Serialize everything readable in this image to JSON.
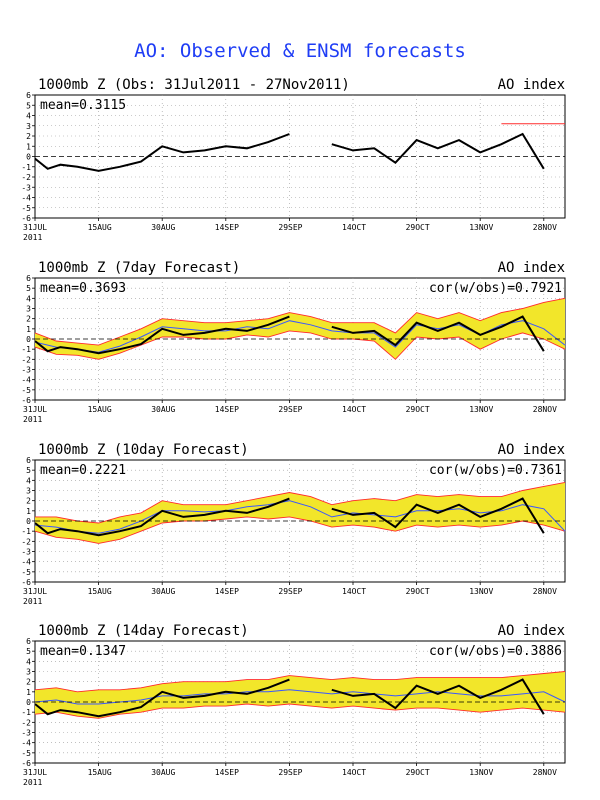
{
  "title": "AO: Observed & ENSM forecasts",
  "title_color": "#1f3df5",
  "colors": {
    "obs": "#000000",
    "ens_band": "#f2e62a",
    "ens_max_min": "#ff2b2b",
    "ens_mean": "#3a57ff",
    "axis": "#000000"
  },
  "x_ticks": [
    "31JUL",
    "15AUG",
    "30AUG",
    "14SEP",
    "29SEP",
    "14OCT",
    "29OCT",
    "13NOV",
    "28NOV"
  ],
  "year_label": "2011",
  "y_ticks": [
    "6",
    "5",
    "4",
    "3",
    "2",
    "1",
    "0",
    "-1",
    "-2",
    "-3",
    "-4",
    "-5",
    "-6"
  ],
  "chart_data": [
    {
      "type": "line",
      "panel_title": "1000mb Z (Obs: 31Jul2011 - 27Nov2011)",
      "index_label": "AO index",
      "mean_label": "mean=0.3115",
      "cor_label": "",
      "xlabel": "",
      "ylabel": "",
      "ylim": [
        -6,
        6
      ],
      "xlim_days": [
        0,
        125
      ],
      "grid": true,
      "observed": {
        "x_days": [
          0,
          3,
          6,
          10,
          15,
          20,
          25,
          30,
          35,
          40,
          45,
          50,
          55,
          60,
          65,
          70,
          75,
          80,
          85,
          90,
          95,
          100,
          105,
          110,
          115,
          120
        ],
        "values": [
          -0.2,
          -1.2,
          -0.8,
          -1.0,
          -1.4,
          -1.0,
          -0.5,
          1.0,
          0.4,
          0.6,
          1.0,
          0.8,
          1.4,
          2.2,
          null,
          1.2,
          0.6,
          0.8,
          -0.6,
          1.6,
          0.8,
          1.6,
          0.4,
          1.2,
          2.2,
          -1.2
        ]
      },
      "red_line": {
        "x_days": [
          110,
          125
        ],
        "values": [
          3.2,
          3.2
        ]
      }
    },
    {
      "type": "line",
      "panel_title": "1000mb Z (7day Forecast)",
      "index_label": "AO index",
      "mean_label": "mean=0.3693",
      "cor_label": "cor(w/obs)=0.7921",
      "xlabel": "",
      "ylabel": "",
      "ylim": [
        -6,
        6
      ],
      "xlim_days": [
        0,
        125
      ],
      "grid": true,
      "observed": {
        "x_days": [
          0,
          3,
          6,
          10,
          15,
          20,
          25,
          30,
          35,
          40,
          45,
          50,
          55,
          60,
          65,
          70,
          75,
          80,
          85,
          90,
          95,
          100,
          105,
          110,
          115,
          120
        ],
        "values": [
          -0.2,
          -1.2,
          -0.8,
          -1.0,
          -1.4,
          -1.0,
          -0.5,
          1.0,
          0.4,
          0.6,
          1.0,
          0.8,
          1.4,
          2.2,
          null,
          1.2,
          0.6,
          0.8,
          -0.6,
          1.6,
          0.8,
          1.6,
          0.4,
          1.2,
          2.2,
          -1.2
        ]
      },
      "ensemble": {
        "x_days": [
          0,
          5,
          10,
          15,
          20,
          25,
          30,
          35,
          40,
          45,
          50,
          55,
          60,
          65,
          70,
          75,
          80,
          85,
          90,
          95,
          100,
          105,
          110,
          115,
          120,
          125
        ],
        "mean": [
          -0.3,
          -0.8,
          -1.0,
          -1.3,
          -0.7,
          0.2,
          1.2,
          1.0,
          0.8,
          0.8,
          1.2,
          1.0,
          1.8,
          1.4,
          0.8,
          0.6,
          0.6,
          -0.8,
          1.4,
          1.0,
          1.4,
          0.4,
          1.4,
          1.8,
          1.0,
          -0.6
        ],
        "min": [
          -0.8,
          -1.5,
          -1.6,
          -2.0,
          -1.4,
          -0.6,
          0.2,
          0.2,
          0.0,
          0.0,
          0.4,
          0.2,
          0.8,
          0.6,
          0.0,
          0.0,
          -0.2,
          -2.0,
          0.2,
          0.0,
          0.2,
          -1.0,
          0.0,
          0.6,
          0.0,
          -1.0
        ],
        "max": [
          0.6,
          -0.2,
          -0.4,
          -0.6,
          0.2,
          1.0,
          2.0,
          1.8,
          1.6,
          1.6,
          1.8,
          2.0,
          2.6,
          2.2,
          1.6,
          1.6,
          1.6,
          0.6,
          2.6,
          2.0,
          2.6,
          1.8,
          2.6,
          3.0,
          3.6,
          4.0
        ]
      }
    },
    {
      "type": "line",
      "panel_title": "1000mb Z (10day Forecast)",
      "index_label": "AO index",
      "mean_label": "mean=0.2221",
      "cor_label": "cor(w/obs)=0.7361",
      "xlabel": "",
      "ylabel": "",
      "ylim": [
        -6,
        6
      ],
      "xlim_days": [
        0,
        125
      ],
      "grid": true,
      "observed": {
        "x_days": [
          0,
          3,
          6,
          10,
          15,
          20,
          25,
          30,
          35,
          40,
          45,
          50,
          55,
          60,
          65,
          70,
          75,
          80,
          85,
          90,
          95,
          100,
          105,
          110,
          115,
          120
        ],
        "values": [
          -0.2,
          -1.2,
          -0.8,
          -1.0,
          -1.4,
          -1.0,
          -0.5,
          1.0,
          0.4,
          0.6,
          1.0,
          0.8,
          1.4,
          2.2,
          null,
          1.2,
          0.6,
          0.8,
          -0.6,
          1.6,
          0.8,
          1.6,
          0.4,
          1.2,
          2.2,
          -1.2
        ]
      },
      "ensemble": {
        "x_days": [
          0,
          5,
          10,
          15,
          20,
          25,
          30,
          35,
          40,
          45,
          50,
          55,
          60,
          65,
          70,
          75,
          80,
          85,
          90,
          95,
          100,
          105,
          110,
          115,
          120,
          125
        ],
        "mean": [
          -0.4,
          -0.6,
          -1.0,
          -1.2,
          -0.8,
          0.0,
          1.0,
          1.0,
          0.9,
          1.0,
          1.4,
          1.6,
          2.0,
          1.4,
          0.4,
          0.8,
          0.6,
          0.4,
          1.0,
          1.0,
          1.2,
          0.8,
          1.0,
          1.6,
          1.2,
          -1.0
        ],
        "min": [
          -1.0,
          -1.6,
          -1.8,
          -2.2,
          -1.8,
          -1.0,
          -0.2,
          0.0,
          0.0,
          0.2,
          0.4,
          0.2,
          0.4,
          0.0,
          -0.6,
          -0.4,
          -0.6,
          -1.0,
          -0.4,
          -0.6,
          -0.4,
          -0.6,
          -0.4,
          0.0,
          -0.4,
          -1.0
        ],
        "max": [
          0.4,
          0.4,
          0.0,
          -0.2,
          0.4,
          0.8,
          2.0,
          1.6,
          1.6,
          1.6,
          2.0,
          2.4,
          2.8,
          2.4,
          1.6,
          2.0,
          2.2,
          2.0,
          2.6,
          2.4,
          2.6,
          2.4,
          2.4,
          3.0,
          3.4,
          3.8
        ]
      }
    },
    {
      "type": "line",
      "panel_title": "1000mb Z (14day Forecast)",
      "index_label": "AO index",
      "mean_label": "mean=0.1347",
      "cor_label": "cor(w/obs)=0.3886",
      "xlabel": "",
      "ylabel": "",
      "ylim": [
        -6,
        6
      ],
      "xlim_days": [
        0,
        125
      ],
      "grid": true,
      "observed": {
        "x_days": [
          0,
          3,
          6,
          10,
          15,
          20,
          25,
          30,
          35,
          40,
          45,
          50,
          55,
          60,
          65,
          70,
          75,
          80,
          85,
          90,
          95,
          100,
          105,
          110,
          115,
          120
        ],
        "values": [
          -0.2,
          -1.2,
          -0.8,
          -1.0,
          -1.4,
          -1.0,
          -0.5,
          1.0,
          0.4,
          0.6,
          1.0,
          0.8,
          1.4,
          2.2,
          null,
          1.2,
          0.6,
          0.8,
          -0.6,
          1.6,
          0.8,
          1.6,
          0.4,
          1.2,
          2.2,
          -1.2
        ]
      },
      "ensemble": {
        "x_days": [
          0,
          5,
          10,
          15,
          20,
          25,
          30,
          35,
          40,
          45,
          50,
          55,
          60,
          65,
          70,
          75,
          80,
          85,
          90,
          95,
          100,
          105,
          110,
          115,
          120,
          125
        ],
        "mean": [
          0.0,
          0.2,
          -0.2,
          -0.2,
          0.0,
          0.2,
          0.6,
          0.6,
          0.8,
          0.8,
          1.0,
          1.0,
          1.2,
          1.0,
          0.8,
          1.0,
          0.8,
          0.6,
          0.8,
          1.0,
          0.8,
          0.6,
          0.6,
          0.8,
          1.0,
          0.0
        ],
        "min": [
          -1.2,
          -1.0,
          -1.4,
          -1.6,
          -1.2,
          -1.0,
          -0.6,
          -0.6,
          -0.4,
          -0.4,
          -0.2,
          -0.4,
          -0.2,
          -0.4,
          -0.6,
          -0.4,
          -0.6,
          -0.8,
          -0.6,
          -0.6,
          -0.8,
          -1.0,
          -0.8,
          -0.6,
          -0.8,
          -1.0
        ],
        "max": [
          1.2,
          1.4,
          1.0,
          1.2,
          1.2,
          1.4,
          1.8,
          2.0,
          2.0,
          2.0,
          2.2,
          2.2,
          2.6,
          2.4,
          2.2,
          2.4,
          2.2,
          2.2,
          2.4,
          2.4,
          2.4,
          2.4,
          2.4,
          2.6,
          2.8,
          3.0
        ]
      }
    }
  ]
}
